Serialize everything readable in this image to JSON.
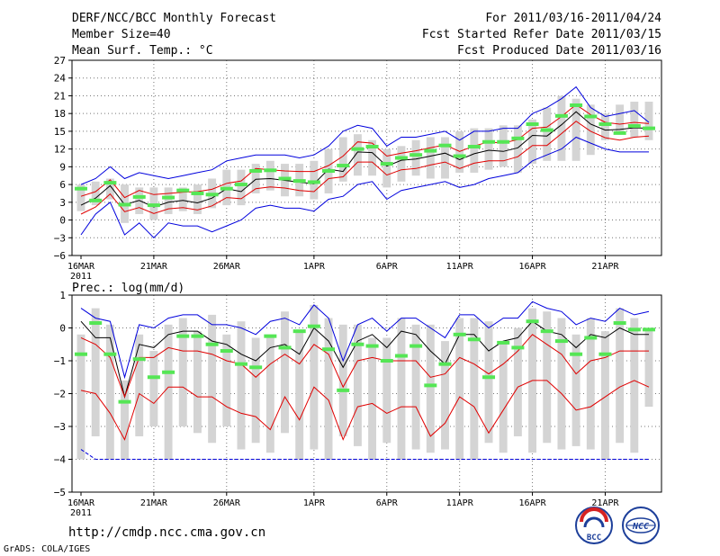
{
  "header": {
    "title": "DERF/NCC/BCC Monthly Forecast",
    "member_size": "Member Size=40",
    "variable": "Mean Surf. Temp.: °C",
    "period": "For 2011/03/16-2011/04/24",
    "started": "Fcst Started Refer Date 2011/03/15",
    "produced": "Fcst Produced Date 2011/03/16"
  },
  "footer": {
    "url": "http://cmdp.ncc.cma.gov.cn",
    "credit": "GrADS: COLA/IGES",
    "logo_bcc": "BCC",
    "logo_ncc": "NCC"
  },
  "colors": {
    "box": "#d4d4d4",
    "obs": "#55e655",
    "mean": "#000000",
    "sd": "#e00000",
    "extreme": "#0000dd",
    "grid": "#777777"
  },
  "chart_data": [
    {
      "type": "line",
      "title": "Mean Surf. Temp.: °C",
      "x_days": [
        0,
        1,
        2,
        3,
        4,
        5,
        6,
        7,
        8,
        9,
        10,
        11,
        12,
        13,
        14,
        15,
        16,
        17,
        18,
        19,
        20,
        21,
        22,
        23,
        24,
        25,
        26,
        27,
        28,
        29,
        30,
        31,
        32,
        33,
        34,
        35,
        36,
        37,
        38,
        39
      ],
      "x_tick_positions": [
        0,
        5,
        10,
        16,
        21,
        26,
        31,
        36
      ],
      "x_tick_labels": [
        "16MAR",
        "21MAR",
        "26MAR",
        "1APR",
        "6APR",
        "11APR",
        "16APR",
        "21APR"
      ],
      "x_sub_label": "2011",
      "ylim": [
        -6,
        27
      ],
      "y_ticks": [
        -6,
        -3,
        0,
        3,
        6,
        9,
        12,
        15,
        18,
        21,
        24,
        27
      ],
      "box_low": [
        1.5,
        2.5,
        3.5,
        -0.5,
        1,
        0,
        1,
        1.5,
        1,
        2,
        2.5,
        2.5,
        4.5,
        5,
        4,
        4,
        3.5,
        4.5,
        6.5,
        7.5,
        7.5,
        5.5,
        6.5,
        7.5,
        7,
        7,
        8,
        8,
        8.5,
        9,
        8,
        9.5,
        10,
        10,
        10,
        11,
        13.5,
        15,
        14,
        13.5
      ],
      "box_high": [
        6,
        6.5,
        7,
        6,
        5.5,
        5.5,
        5.5,
        5.5,
        6,
        7,
        8.5,
        8.5,
        9.5,
        10,
        9.5,
        9.5,
        10,
        12,
        14,
        14.5,
        13.5,
        12,
        12.5,
        13.5,
        14,
        14,
        15,
        15.5,
        15.5,
        16,
        16,
        17,
        19,
        21,
        20.5,
        19.5,
        18,
        19.5,
        20,
        20
      ],
      "obs": [
        5.3,
        3.3,
        6.3,
        2.6,
        3.9,
        2.5,
        3.8,
        5,
        4.5,
        4.3,
        5.3,
        6,
        8.3,
        8.4,
        7,
        6.6,
        6.4,
        8.3,
        9.2,
        12,
        12.4,
        9.5,
        10.5,
        11,
        11.7,
        12.6,
        10.8,
        12.4,
        13.2,
        13.2,
        13.8,
        16.2,
        15.2,
        17.6,
        19.4,
        17.5,
        16.2,
        14.7,
        15.9,
        15.5
      ],
      "series": [
        {
          "name": "max",
          "values": [
            6,
            7,
            9,
            7,
            8,
            7.5,
            7,
            7.5,
            8,
            8.5,
            10,
            10.5,
            11,
            11,
            11,
            10.5,
            11,
            12.5,
            15,
            16,
            15.5,
            12.5,
            14,
            14,
            14.5,
            15,
            13.5,
            15,
            15,
            15.5,
            15.5,
            18,
            19,
            20.5,
            22.5,
            19,
            17.5,
            18,
            18.5,
            16.5
          ]
        },
        {
          "name": "plus_sd",
          "values": [
            4,
            4.8,
            6.8,
            3.8,
            5,
            4.3,
            4.5,
            4.7,
            4.8,
            5.2,
            6.2,
            6.6,
            8.7,
            8.5,
            8.3,
            8.2,
            8.2,
            9.2,
            10.8,
            13.2,
            13,
            10.8,
            11.3,
            11.7,
            12.2,
            12.7,
            11.6,
            12.5,
            13.2,
            13,
            13.6,
            15.5,
            15.7,
            17.5,
            19.5,
            17.8,
            16.5,
            16.2,
            16.5,
            16.3
          ]
        },
        {
          "name": "mean",
          "values": [
            2.5,
            3.7,
            5.8,
            2.6,
            3.3,
            2.2,
            3,
            3.3,
            2.9,
            3.7,
            5.3,
            4.8,
            6.9,
            7,
            6.7,
            6.4,
            6.1,
            8.6,
            8.2,
            11.5,
            11.4,
            9.1,
            10.1,
            10.3,
            10.8,
            11.3,
            10.2,
            11.2,
            11.8,
            11.6,
            12.2,
            14.3,
            14.2,
            16.1,
            18.3,
            16.2,
            15.2,
            15.3,
            15.6,
            15.5
          ]
        },
        {
          "name": "minus_sd",
          "values": [
            1,
            2.2,
            4.4,
            1.4,
            2.1,
            1.1,
            1.9,
            2.1,
            1.7,
            2.4,
            3.8,
            3.6,
            5.3,
            5.6,
            5.4,
            5,
            4.8,
            7,
            7.3,
            9.8,
            9.8,
            7.6,
            8.5,
            8.7,
            9.3,
            9.8,
            8.7,
            9.6,
            10,
            10,
            10.7,
            12.6,
            12.6,
            14.6,
            16.7,
            15,
            13.9,
            13.5,
            14,
            14.2
          ]
        },
        {
          "name": "min",
          "values": [
            -2.5,
            1,
            3,
            -2.5,
            -0.5,
            -3,
            -0.5,
            -1,
            -1,
            -2,
            -1,
            0,
            2,
            2.5,
            2,
            2,
            1.5,
            3.5,
            4,
            6,
            6.5,
            3.5,
            5,
            5.5,
            6,
            6.5,
            5.5,
            6,
            7,
            7.5,
            8,
            10,
            11,
            12,
            14,
            13,
            12,
            11.5,
            11.5,
            11.5
          ]
        }
      ],
      "series_colors": [
        "#0000dd",
        "#e00000",
        "#000000",
        "#e00000",
        "#0000dd"
      ]
    },
    {
      "type": "line",
      "title": "Prec.: log(mm/d)",
      "x_days": [
        0,
        1,
        2,
        3,
        4,
        5,
        6,
        7,
        8,
        9,
        10,
        11,
        12,
        13,
        14,
        15,
        16,
        17,
        18,
        19,
        20,
        21,
        22,
        23,
        24,
        25,
        26,
        27,
        28,
        29,
        30,
        31,
        32,
        33,
        34,
        35,
        36,
        37,
        38,
        39
      ],
      "x_tick_positions": [
        0,
        5,
        10,
        16,
        21,
        26,
        31,
        36
      ],
      "x_tick_labels": [
        "16MAR",
        "21MAR",
        "26MAR",
        "1APR",
        "6APR",
        "11APR",
        "16APR",
        "21APR"
      ],
      "x_sub_label": "2011",
      "ylim": [
        -5,
        1
      ],
      "y_ticks": [
        -5,
        -4,
        -3,
        -2,
        -1,
        0,
        1
      ],
      "box_low": [
        -4,
        -3.3,
        -4,
        -4,
        -3.3,
        -3,
        -4,
        -3,
        -3.2,
        -3.5,
        -3,
        -3.7,
        -3.5,
        -3.8,
        -3.2,
        -4,
        -3.7,
        -4,
        -3.3,
        -3.6,
        -4,
        -3.5,
        -4,
        -3.7,
        -3.8,
        -3.7,
        -4,
        -4,
        -3.5,
        -3.8,
        -3.3,
        -3.8,
        -3.5,
        -3.7,
        -3.6,
        -3.7,
        -4,
        -3.5,
        -3.8,
        -2.4
      ],
      "box_high": [
        -0.2,
        0.6,
        0.1,
        -1.6,
        -0.2,
        -0.7,
        0.1,
        0.3,
        -0.1,
        0.4,
        -0.2,
        0.2,
        -0.3,
        -0.2,
        0.5,
        -0.1,
        0.7,
        0.3,
        0.1,
        0.1,
        -0.3,
        -0.3,
        0.3,
        0.1,
        0.1,
        -0.4,
        0.3,
        0.3,
        0.2,
        -0.4,
        0,
        0.6,
        0.5,
        0.3,
        -0.2,
        0.3,
        -0.1,
        0.6,
        0.3,
        -0.1
      ],
      "obs": [
        -0.8,
        0.15,
        -0.8,
        -2.25,
        -0.95,
        -1.5,
        -1.35,
        -0.25,
        -0.25,
        -0.5,
        -0.7,
        -1.1,
        -1.2,
        -0.25,
        -0.6,
        -0.1,
        0.05,
        -0.65,
        -1.9,
        -0.5,
        -0.55,
        -1,
        -0.85,
        -0.55,
        -1.75,
        -1.1,
        -0.2,
        -0.35,
        -1.5,
        -0.45,
        -0.6,
        0.2,
        -0.1,
        -0.4,
        -0.8,
        -0.3,
        -0.8,
        0.15,
        -0.05,
        -0.05
      ],
      "series": [
        {
          "name": "max",
          "values": [
            0.6,
            0.3,
            0.2,
            -1.5,
            0.1,
            0,
            0.3,
            0.4,
            0.4,
            0.1,
            0.1,
            0,
            -0.2,
            0.2,
            0.3,
            0.1,
            0.7,
            0.3,
            -1,
            0.1,
            0.3,
            -0.1,
            0.3,
            0.3,
            0,
            -0.3,
            0.4,
            0.4,
            0,
            0.3,
            0.3,
            0.8,
            0.6,
            0.5,
            0.1,
            0.3,
            0.2,
            0.6,
            0.4,
            0.5
          ]
        },
        {
          "name": "mean",
          "values": [
            0.2,
            -0.3,
            -0.3,
            -2.1,
            -0.5,
            -0.6,
            -0.2,
            -0.1,
            -0.1,
            -0.4,
            -0.5,
            -0.8,
            -1,
            -0.6,
            -0.5,
            -0.8,
            0,
            -0.4,
            -1.2,
            -0.4,
            -0.2,
            -0.6,
            -0.1,
            -0.2,
            -0.7,
            -1.1,
            -0.2,
            -0.2,
            -0.7,
            -0.4,
            -0.3,
            0.2,
            -0.1,
            -0.2,
            -0.6,
            -0.2,
            -0.3,
            0,
            -0.2,
            -0.2
          ]
        },
        {
          "name": "plus_sd_band",
          "values": [
            -0.3,
            -0.5,
            -0.9,
            -2.1,
            -0.9,
            -0.9,
            -0.6,
            -0.7,
            -0.7,
            -0.8,
            -1,
            -1.1,
            -1.5,
            -1.1,
            -0.8,
            -1.1,
            -0.5,
            -0.8,
            -1.8,
            -1,
            -0.9,
            -1,
            -1,
            -1,
            -1.5,
            -1.4,
            -0.9,
            -1.1,
            -1.4,
            -1.1,
            -0.7,
            -0.2,
            -0.5,
            -0.8,
            -1.4,
            -1,
            -0.9,
            -0.7,
            -0.7,
            -0.7
          ]
        },
        {
          "name": "minus_sd",
          "values": [
            -1.9,
            -2,
            -2.6,
            -3.4,
            -2,
            -2.3,
            -1.8,
            -1.8,
            -2.1,
            -2.1,
            -2.4,
            -2.6,
            -2.7,
            -3.1,
            -2.1,
            -2.8,
            -1.8,
            -2.2,
            -3.4,
            -2.4,
            -2.3,
            -2.6,
            -2.4,
            -2.4,
            -3.3,
            -2.9,
            -2.1,
            -2.4,
            -3.2,
            -2.5,
            -1.8,
            -1.6,
            -1.6,
            -2,
            -2.5,
            -2.4,
            -2.1,
            -1.8,
            -1.6,
            -1.8
          ]
        },
        {
          "name": "min",
          "values": [
            -3.7,
            -4,
            -4,
            -4,
            -4,
            -4,
            -4,
            -4,
            -4,
            -4,
            -4,
            -4,
            -4,
            -4,
            -4,
            -4,
            -4,
            -4,
            -4,
            -4,
            -4,
            -4,
            -4,
            -4,
            -4,
            -4,
            -4,
            -4,
            -4,
            -4,
            -4,
            -4,
            -4,
            -4,
            -4,
            -4,
            -4,
            -4,
            -4,
            -4
          ]
        }
      ],
      "series_colors": [
        "#0000dd",
        "#000000",
        "#e00000",
        "#e00000",
        "#0000dd"
      ],
      "series_dash": [
        false,
        false,
        false,
        false,
        true
      ]
    }
  ]
}
